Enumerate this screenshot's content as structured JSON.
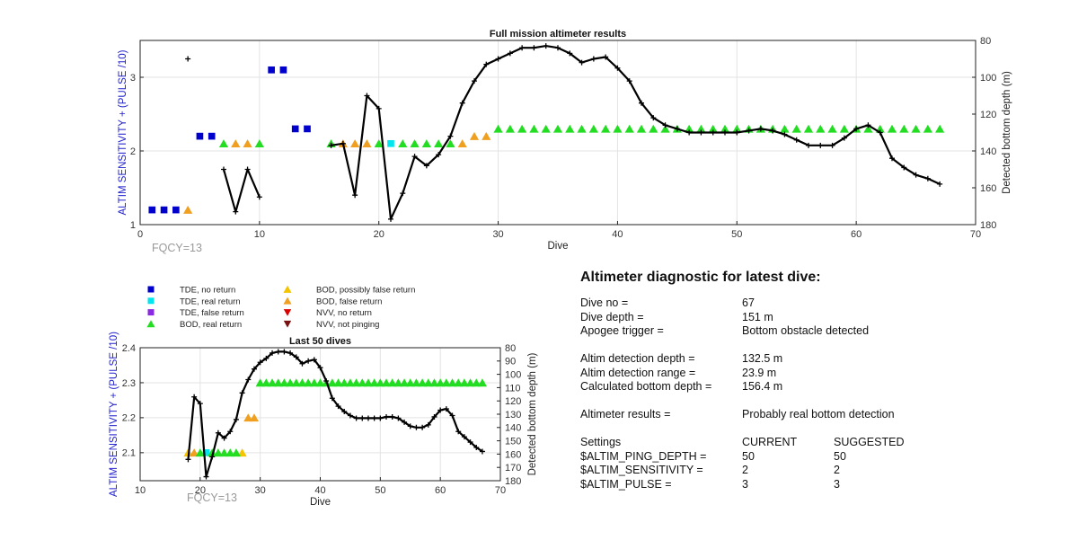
{
  "colors": {
    "axis_left": "#2222cc",
    "tde_no": "#0000cc",
    "tde_real": "#00e5ee",
    "tde_false": "#8a2be2",
    "bod_real": "#22dd22",
    "bod_possibly": "#f5c400",
    "bod_false": "#f0a020",
    "nvv_no": "#dd0000",
    "nvv_not": "#7a1010",
    "depth_line": "#000000"
  },
  "legend": [
    {
      "label": "TDE, no return",
      "marker": "square",
      "color": "#0000cc"
    },
    {
      "label": "BOD, possibly false return",
      "marker": "triangle-up",
      "color": "#f5c400"
    },
    {
      "label": "TDE, real return",
      "marker": "square",
      "color": "#00e5ee"
    },
    {
      "label": "BOD, false return",
      "marker": "triangle-up",
      "color": "#f0a020"
    },
    {
      "label": "TDE, false return",
      "marker": "square",
      "color": "#8a2be2"
    },
    {
      "label": "NVV, no return",
      "marker": "triangle-down",
      "color": "#dd0000"
    },
    {
      "label": "BOD, real return",
      "marker": "triangle-up",
      "color": "#22dd22"
    },
    {
      "label": "NVV, not pinging",
      "marker": "triangle-down",
      "color": "#7a1010"
    }
  ],
  "chart_data": [
    {
      "type": "scatter",
      "title": "Full mission altimeter results",
      "xlabel": "Dive",
      "ylabel": "ALTIM SENSITIVITY + (PULSE /10)",
      "y2label": "Detected bottom depth (m)",
      "annotation": "FQCY=13",
      "xlim": [
        0,
        70
      ],
      "ylim": [
        1,
        3.5
      ],
      "y2lim": [
        80,
        180
      ],
      "y2_reversed": true,
      "xticks": [
        0,
        10,
        20,
        30,
        40,
        50,
        60,
        70
      ],
      "yticks": [
        1,
        2,
        3
      ],
      "y2ticks": [
        80,
        100,
        120,
        140,
        160,
        180
      ],
      "grid": true,
      "markers": [
        {
          "class": "tde_no",
          "points": [
            [
              1,
              1.2
            ],
            [
              2,
              1.2
            ],
            [
              3,
              1.2
            ],
            [
              5,
              2.2
            ],
            [
              6,
              2.2
            ],
            [
              11,
              3.1
            ],
            [
              12,
              3.1
            ],
            [
              13,
              2.3
            ],
            [
              14,
              2.3
            ]
          ]
        },
        {
          "class": "tde_real",
          "points": [
            [
              21,
              2.1
            ]
          ]
        },
        {
          "class": "bod_false",
          "points": [
            [
              4,
              1.2
            ],
            [
              8,
              2.1
            ],
            [
              9,
              2.1
            ],
            [
              17,
              2.1
            ],
            [
              18,
              2.1
            ],
            [
              19,
              2.1
            ],
            [
              27,
              2.1
            ],
            [
              28,
              2.2
            ],
            [
              29,
              2.2
            ]
          ]
        },
        {
          "class": "bod_real",
          "points": [
            [
              7,
              2.1
            ],
            [
              10,
              2.1
            ],
            [
              16,
              2.1
            ],
            [
              20,
              2.1
            ],
            [
              22,
              2.1
            ],
            [
              23,
              2.1
            ],
            [
              24,
              2.1
            ],
            [
              25,
              2.1
            ],
            [
              26,
              2.1
            ],
            [
              30,
              2.3
            ],
            [
              31,
              2.3
            ],
            [
              32,
              2.3
            ],
            [
              33,
              2.3
            ],
            [
              34,
              2.3
            ],
            [
              35,
              2.3
            ],
            [
              36,
              2.3
            ],
            [
              37,
              2.3
            ],
            [
              38,
              2.3
            ],
            [
              39,
              2.3
            ],
            [
              40,
              2.3
            ],
            [
              41,
              2.3
            ],
            [
              42,
              2.3
            ],
            [
              43,
              2.3
            ],
            [
              44,
              2.3
            ],
            [
              45,
              2.3
            ],
            [
              46,
              2.3
            ],
            [
              47,
              2.3
            ],
            [
              48,
              2.3
            ],
            [
              49,
              2.3
            ],
            [
              50,
              2.3
            ],
            [
              51,
              2.3
            ],
            [
              52,
              2.3
            ],
            [
              53,
              2.3
            ],
            [
              54,
              2.3
            ],
            [
              55,
              2.3
            ],
            [
              56,
              2.3
            ],
            [
              57,
              2.3
            ],
            [
              58,
              2.3
            ],
            [
              59,
              2.3
            ],
            [
              60,
              2.3
            ],
            [
              61,
              2.3
            ],
            [
              62,
              2.3
            ],
            [
              63,
              2.3
            ],
            [
              64,
              2.3
            ],
            [
              65,
              2.3
            ],
            [
              66,
              2.3
            ],
            [
              67,
              2.3
            ]
          ]
        }
      ],
      "depth_series": [
        [
          [
            4,
            90
          ]
        ],
        [
          [
            7,
            150
          ],
          [
            8,
            173
          ],
          [
            9,
            150
          ],
          [
            10,
            165
          ]
        ],
        [
          [
            16,
            137
          ],
          [
            17,
            136
          ],
          [
            18,
            164
          ],
          [
            19,
            110
          ],
          [
            20,
            117
          ],
          [
            21,
            177
          ],
          [
            22,
            163
          ],
          [
            23,
            143
          ],
          [
            24,
            148
          ],
          [
            25,
            142
          ],
          [
            26,
            132
          ],
          [
            27,
            114
          ],
          [
            28,
            102
          ],
          [
            29,
            93
          ],
          [
            30,
            90
          ],
          [
            31,
            87
          ],
          [
            32,
            84
          ],
          [
            33,
            84
          ],
          [
            34,
            83
          ],
          [
            35,
            84
          ],
          [
            36,
            87
          ],
          [
            37,
            92
          ],
          [
            38,
            90
          ],
          [
            39,
            89
          ],
          [
            40,
            95
          ],
          [
            41,
            102
          ],
          [
            42,
            114
          ],
          [
            43,
            122
          ],
          [
            44,
            126
          ],
          [
            45,
            128
          ],
          [
            46,
            130
          ],
          [
            47,
            130
          ],
          [
            48,
            130
          ],
          [
            49,
            130
          ],
          [
            50,
            130
          ],
          [
            51,
            129
          ],
          [
            52,
            128
          ],
          [
            53,
            129
          ],
          [
            54,
            131
          ],
          [
            55,
            134
          ],
          [
            56,
            137
          ],
          [
            57,
            137
          ],
          [
            58,
            137
          ],
          [
            59,
            133
          ],
          [
            60,
            128
          ],
          [
            61,
            126
          ],
          [
            62,
            130
          ],
          [
            63,
            144
          ],
          [
            64,
            149
          ],
          [
            65,
            153
          ],
          [
            66,
            155
          ],
          [
            67,
            158
          ]
        ]
      ]
    },
    {
      "type": "scatter",
      "title": "Last 50 dives",
      "xlabel": "Dive",
      "ylabel": "ALTIM SENSITIVITY + (PULSE /10)",
      "y2label": "Detected bottom depth (m)",
      "annotation": "FQCY=13",
      "xlim": [
        10,
        70
      ],
      "ylim": [
        2.02,
        2.4
      ],
      "y2lim": [
        80,
        180
      ],
      "y2_reversed": true,
      "xticks": [
        10,
        20,
        30,
        40,
        50,
        60,
        70
      ],
      "yticks": [
        2.1,
        2.2,
        2.3,
        2.4
      ],
      "y2ticks": [
        80,
        90,
        100,
        110,
        120,
        130,
        140,
        150,
        160,
        170,
        180
      ],
      "grid": true,
      "markers": [
        {
          "class": "tde_real",
          "points": [
            [
              21,
              2.1
            ]
          ]
        },
        {
          "class": "bod_possibly",
          "points": [
            [
              18,
              2.1
            ],
            [
              27,
              2.1
            ]
          ]
        },
        {
          "class": "bod_false",
          "points": [
            [
              19,
              2.1
            ],
            [
              28,
              2.2
            ],
            [
              29,
              2.2
            ]
          ]
        },
        {
          "class": "bod_real",
          "points": [
            [
              20,
              2.1
            ],
            [
              22,
              2.1
            ],
            [
              23,
              2.1
            ],
            [
              24,
              2.1
            ],
            [
              25,
              2.1
            ],
            [
              26,
              2.1
            ],
            [
              30,
              2.3
            ],
            [
              31,
              2.3
            ],
            [
              32,
              2.3
            ],
            [
              33,
              2.3
            ],
            [
              34,
              2.3
            ],
            [
              35,
              2.3
            ],
            [
              36,
              2.3
            ],
            [
              37,
              2.3
            ],
            [
              38,
              2.3
            ],
            [
              39,
              2.3
            ],
            [
              40,
              2.3
            ],
            [
              41,
              2.3
            ],
            [
              42,
              2.3
            ],
            [
              43,
              2.3
            ],
            [
              44,
              2.3
            ],
            [
              45,
              2.3
            ],
            [
              46,
              2.3
            ],
            [
              47,
              2.3
            ],
            [
              48,
              2.3
            ],
            [
              49,
              2.3
            ],
            [
              50,
              2.3
            ],
            [
              51,
              2.3
            ],
            [
              52,
              2.3
            ],
            [
              53,
              2.3
            ],
            [
              54,
              2.3
            ],
            [
              55,
              2.3
            ],
            [
              56,
              2.3
            ],
            [
              57,
              2.3
            ],
            [
              58,
              2.3
            ],
            [
              59,
              2.3
            ],
            [
              60,
              2.3
            ],
            [
              61,
              2.3
            ],
            [
              62,
              2.3
            ],
            [
              63,
              2.3
            ],
            [
              64,
              2.3
            ],
            [
              65,
              2.3
            ],
            [
              66,
              2.3
            ],
            [
              67,
              2.3
            ]
          ]
        }
      ],
      "depth_series": [
        [
          [
            18,
            164
          ],
          [
            19,
            117
          ],
          [
            20,
            122
          ],
          [
            21,
            177
          ],
          [
            22,
            162
          ],
          [
            23,
            144
          ],
          [
            24,
            148
          ],
          [
            25,
            143
          ],
          [
            26,
            134
          ],
          [
            27,
            114
          ],
          [
            28,
            104
          ],
          [
            29,
            96
          ],
          [
            30,
            91
          ],
          [
            31,
            88
          ],
          [
            32,
            84
          ],
          [
            33,
            83
          ],
          [
            34,
            83
          ],
          [
            35,
            84
          ],
          [
            36,
            87
          ],
          [
            37,
            92
          ],
          [
            38,
            90
          ],
          [
            39,
            89
          ],
          [
            40,
            95
          ],
          [
            41,
            105
          ],
          [
            42,
            118
          ],
          [
            43,
            124
          ],
          [
            44,
            128
          ],
          [
            45,
            131
          ],
          [
            46,
            133
          ],
          [
            47,
            133
          ],
          [
            48,
            133
          ],
          [
            49,
            133
          ],
          [
            50,
            133
          ],
          [
            51,
            132
          ],
          [
            52,
            132
          ],
          [
            53,
            133
          ],
          [
            54,
            136
          ],
          [
            55,
            139
          ],
          [
            56,
            140
          ],
          [
            57,
            140
          ],
          [
            58,
            138
          ],
          [
            59,
            132
          ],
          [
            60,
            127
          ],
          [
            61,
            126
          ],
          [
            62,
            131
          ],
          [
            63,
            143
          ],
          [
            64,
            147
          ],
          [
            65,
            151
          ],
          [
            66,
            155
          ],
          [
            67,
            158
          ]
        ]
      ]
    }
  ],
  "diagnostic": {
    "title": "Altimeter diagnostic for latest dive:",
    "rows": [
      [
        "Dive no =",
        "67",
        ""
      ],
      [
        "Dive depth =",
        "151 m",
        ""
      ],
      [
        "Apogee trigger =",
        "Bottom obstacle detected",
        ""
      ],
      [
        "",
        "",
        ""
      ],
      [
        "Altim detection depth =",
        "132.5 m",
        ""
      ],
      [
        "Altim detection range =",
        "23.9 m",
        ""
      ],
      [
        "Calculated bottom depth =",
        "156.4 m",
        ""
      ],
      [
        "",
        "",
        ""
      ],
      [
        "Altimeter results =",
        "Probably real bottom detection",
        ""
      ],
      [
        "",
        "",
        ""
      ],
      [
        "Settings",
        "CURRENT",
        "SUGGESTED"
      ],
      [
        "$ALTIM_PING_DEPTH =",
        "50",
        "50"
      ],
      [
        "$ALTIM_SENSITIVITY =",
        "2",
        "2"
      ],
      [
        "$ALTIM_PULSE =",
        "3",
        "3"
      ]
    ]
  }
}
